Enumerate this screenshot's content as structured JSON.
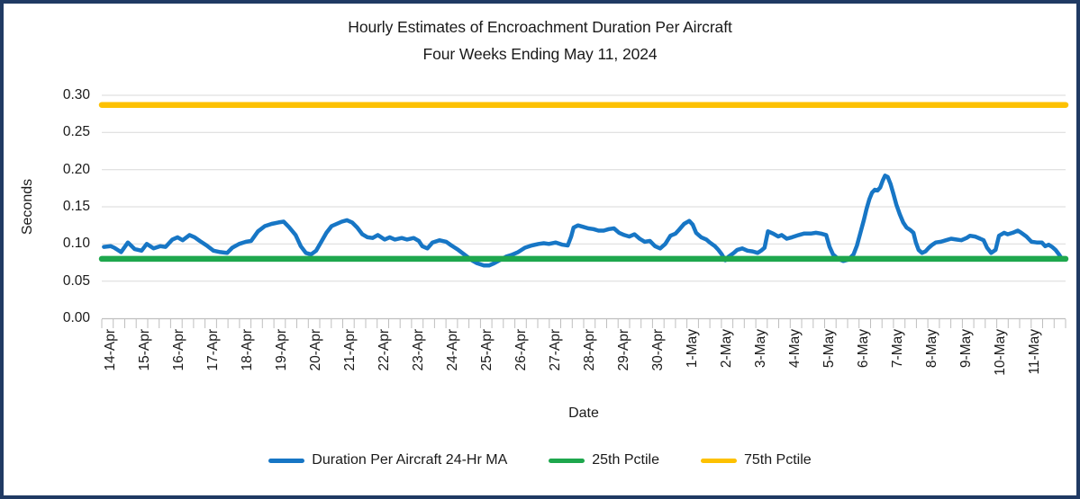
{
  "chart_data": {
    "type": "line",
    "title": "Hourly Estimates of Encroachment Duration Per Aircraft",
    "subtitle": "Four Weeks Ending May 11, 2024",
    "xlabel": "Date",
    "ylabel": "Seconds",
    "ylim": [
      0,
      0.3
    ],
    "ytick_step": 0.05,
    "ytick_labels": [
      "0.00",
      "0.05",
      "0.10",
      "0.15",
      "0.20",
      "0.25",
      "0.30"
    ],
    "x_categories": [
      "14-Apr",
      "15-Apr",
      "16-Apr",
      "17-Apr",
      "18-Apr",
      "19-Apr",
      "20-Apr",
      "21-Apr",
      "22-Apr",
      "23-Apr",
      "24-Apr",
      "25-Apr",
      "26-Apr",
      "27-Apr",
      "28-Apr",
      "29-Apr",
      "30-Apr",
      "1-May",
      "2-May",
      "3-May",
      "4-May",
      "5-May",
      "6-May",
      "7-May",
      "8-May",
      "9-May",
      "10-May",
      "11-May"
    ],
    "x_units": "days_since_14_Apr",
    "grid": "horizontal",
    "legend_position": "bottom",
    "colors": {
      "gridline": "#D9D9D9",
      "axis": "#BFBFBF",
      "text": "#1A1A1A",
      "frame_border": "#203A63"
    },
    "series": [
      {
        "name": "Duration Per Aircraft 24-Hr MA",
        "type": "line",
        "color": "#1776C5",
        "stroke_width": 4.5,
        "points": [
          [
            -0.2,
            0.096
          ],
          [
            0,
            0.097
          ],
          [
            0.1,
            0.095
          ],
          [
            0.3,
            0.089
          ],
          [
            0.5,
            0.102
          ],
          [
            0.7,
            0.093
          ],
          [
            0.9,
            0.091
          ],
          [
            1.05,
            0.1
          ],
          [
            1.25,
            0.094
          ],
          [
            1.45,
            0.097
          ],
          [
            1.6,
            0.096
          ],
          [
            1.8,
            0.106
          ],
          [
            1.95,
            0.109
          ],
          [
            2.1,
            0.105
          ],
          [
            2.3,
            0.112
          ],
          [
            2.45,
            0.109
          ],
          [
            2.6,
            0.104
          ],
          [
            2.8,
            0.098
          ],
          [
            3,
            0.091
          ],
          [
            3.2,
            0.089
          ],
          [
            3.4,
            0.088
          ],
          [
            3.55,
            0.095
          ],
          [
            3.75,
            0.1
          ],
          [
            3.95,
            0.103
          ],
          [
            4.1,
            0.104
          ],
          [
            4.3,
            0.117
          ],
          [
            4.5,
            0.124
          ],
          [
            4.7,
            0.127
          ],
          [
            4.9,
            0.129
          ],
          [
            5.05,
            0.13
          ],
          [
            5.2,
            0.123
          ],
          [
            5.4,
            0.112
          ],
          [
            5.55,
            0.097
          ],
          [
            5.7,
            0.088
          ],
          [
            5.85,
            0.086
          ],
          [
            6,
            0.091
          ],
          [
            6.15,
            0.103
          ],
          [
            6.3,
            0.115
          ],
          [
            6.45,
            0.124
          ],
          [
            6.6,
            0.127
          ],
          [
            6.75,
            0.13
          ],
          [
            6.9,
            0.132
          ],
          [
            7.05,
            0.129
          ],
          [
            7.2,
            0.122
          ],
          [
            7.35,
            0.113
          ],
          [
            7.5,
            0.109
          ],
          [
            7.65,
            0.108
          ],
          [
            7.8,
            0.112
          ],
          [
            8,
            0.106
          ],
          [
            8.15,
            0.109
          ],
          [
            8.3,
            0.106
          ],
          [
            8.5,
            0.108
          ],
          [
            8.65,
            0.106
          ],
          [
            8.85,
            0.108
          ],
          [
            9,
            0.104
          ],
          [
            9.1,
            0.097
          ],
          [
            9.25,
            0.094
          ],
          [
            9.4,
            0.102
          ],
          [
            9.6,
            0.105
          ],
          [
            9.8,
            0.103
          ],
          [
            9.95,
            0.098
          ],
          [
            10.15,
            0.092
          ],
          [
            10.35,
            0.085
          ],
          [
            10.55,
            0.078
          ],
          [
            10.7,
            0.074
          ],
          [
            10.9,
            0.071
          ],
          [
            11.05,
            0.071
          ],
          [
            11.2,
            0.074
          ],
          [
            11.4,
            0.079
          ],
          [
            11.55,
            0.083
          ],
          [
            11.7,
            0.085
          ],
          [
            11.9,
            0.089
          ],
          [
            12.1,
            0.095
          ],
          [
            12.3,
            0.098
          ],
          [
            12.5,
            0.1
          ],
          [
            12.65,
            0.101
          ],
          [
            12.8,
            0.1
          ],
          [
            13,
            0.102
          ],
          [
            13.2,
            0.099
          ],
          [
            13.35,
            0.098
          ],
          [
            13.45,
            0.11
          ],
          [
            13.52,
            0.122
          ],
          [
            13.65,
            0.125
          ],
          [
            13.8,
            0.123
          ],
          [
            13.95,
            0.121
          ],
          [
            14.1,
            0.12
          ],
          [
            14.25,
            0.118
          ],
          [
            14.4,
            0.118
          ],
          [
            14.55,
            0.12
          ],
          [
            14.7,
            0.121
          ],
          [
            14.85,
            0.115
          ],
          [
            15,
            0.112
          ],
          [
            15.15,
            0.11
          ],
          [
            15.3,
            0.113
          ],
          [
            15.45,
            0.107
          ],
          [
            15.6,
            0.103
          ],
          [
            15.75,
            0.104
          ],
          [
            15.9,
            0.097
          ],
          [
            16.05,
            0.094
          ],
          [
            16.2,
            0.1
          ],
          [
            16.35,
            0.111
          ],
          [
            16.5,
            0.114
          ],
          [
            16.6,
            0.119
          ],
          [
            16.75,
            0.127
          ],
          [
            16.9,
            0.131
          ],
          [
            17,
            0.126
          ],
          [
            17.1,
            0.115
          ],
          [
            17.25,
            0.109
          ],
          [
            17.4,
            0.106
          ],
          [
            17.5,
            0.102
          ],
          [
            17.65,
            0.097
          ],
          [
            17.75,
            0.092
          ],
          [
            17.85,
            0.086
          ],
          [
            17.95,
            0.078
          ],
          [
            18.05,
            0.083
          ],
          [
            18.2,
            0.088
          ],
          [
            18.3,
            0.092
          ],
          [
            18.45,
            0.094
          ],
          [
            18.6,
            0.091
          ],
          [
            18.75,
            0.09
          ],
          [
            18.9,
            0.088
          ],
          [
            19,
            0.091
          ],
          [
            19.1,
            0.095
          ],
          [
            19.2,
            0.117
          ],
          [
            19.35,
            0.114
          ],
          [
            19.5,
            0.11
          ],
          [
            19.6,
            0.112
          ],
          [
            19.75,
            0.107
          ],
          [
            19.9,
            0.109
          ],
          [
            20.1,
            0.112
          ],
          [
            20.25,
            0.114
          ],
          [
            20.45,
            0.114
          ],
          [
            20.6,
            0.115
          ],
          [
            20.75,
            0.114
          ],
          [
            20.9,
            0.112
          ],
          [
            21,
            0.096
          ],
          [
            21.1,
            0.086
          ],
          [
            21.25,
            0.08
          ],
          [
            21.4,
            0.077
          ],
          [
            21.55,
            0.079
          ],
          [
            21.7,
            0.086
          ],
          [
            21.8,
            0.098
          ],
          [
            21.9,
            0.115
          ],
          [
            22,
            0.132
          ],
          [
            22.08,
            0.147
          ],
          [
            22.16,
            0.16
          ],
          [
            22.24,
            0.169
          ],
          [
            22.32,
            0.173
          ],
          [
            22.4,
            0.172
          ],
          [
            22.48,
            0.176
          ],
          [
            22.55,
            0.185
          ],
          [
            22.62,
            0.192
          ],
          [
            22.7,
            0.19
          ],
          [
            22.78,
            0.181
          ],
          [
            22.86,
            0.168
          ],
          [
            22.95,
            0.153
          ],
          [
            23.05,
            0.14
          ],
          [
            23.15,
            0.129
          ],
          [
            23.25,
            0.122
          ],
          [
            23.35,
            0.119
          ],
          [
            23.45,
            0.115
          ],
          [
            23.52,
            0.102
          ],
          [
            23.6,
            0.092
          ],
          [
            23.7,
            0.088
          ],
          [
            23.8,
            0.09
          ],
          [
            23.9,
            0.095
          ],
          [
            24,
            0.099
          ],
          [
            24.1,
            0.102
          ],
          [
            24.25,
            0.103
          ],
          [
            24.4,
            0.105
          ],
          [
            24.55,
            0.107
          ],
          [
            24.7,
            0.106
          ],
          [
            24.85,
            0.105
          ],
          [
            25,
            0.108
          ],
          [
            25.1,
            0.111
          ],
          [
            25.25,
            0.11
          ],
          [
            25.4,
            0.107
          ],
          [
            25.5,
            0.105
          ],
          [
            25.6,
            0.095
          ],
          [
            25.72,
            0.088
          ],
          [
            25.85,
            0.092
          ],
          [
            25.95,
            0.111
          ],
          [
            26.1,
            0.115
          ],
          [
            26.2,
            0.113
          ],
          [
            26.35,
            0.115
          ],
          [
            26.5,
            0.118
          ],
          [
            26.6,
            0.115
          ],
          [
            26.75,
            0.11
          ],
          [
            26.9,
            0.103
          ],
          [
            27.05,
            0.102
          ],
          [
            27.2,
            0.102
          ],
          [
            27.3,
            0.097
          ],
          [
            27.4,
            0.099
          ],
          [
            27.5,
            0.096
          ],
          [
            27.6,
            0.092
          ],
          [
            27.7,
            0.086
          ],
          [
            27.8,
            0.079
          ]
        ]
      },
      {
        "name": "25th Pctile",
        "type": "constant-line",
        "color": "#1EA74D",
        "stroke_width": 6.5,
        "value": 0.08
      },
      {
        "name": "75th Pctile",
        "type": "constant-line",
        "color": "#FDC101",
        "stroke_width": 6.5,
        "value": 0.287
      }
    ]
  }
}
